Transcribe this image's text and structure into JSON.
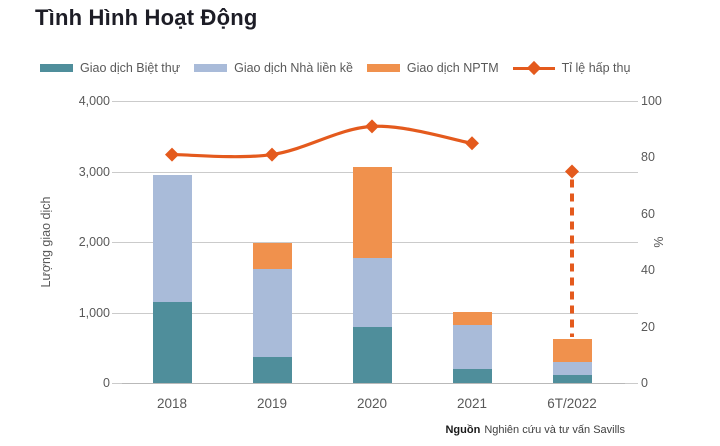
{
  "title": "Tình Hình Hoạt Động",
  "source": {
    "label": "Nguồn",
    "text": "Nghiên cứu và tư vấn Savills"
  },
  "chart_data": {
    "type": "bar",
    "subtype": "stacked-bars-with-right-axis-line",
    "title": "Tình Hình Hoạt Động",
    "categories": [
      "2018",
      "2019",
      "2020",
      "2021",
      "6T/2022"
    ],
    "series": [
      {
        "key": "biet-thu",
        "name": "Giao dịch Biệt thự",
        "type": "bar",
        "color": "#4F8E9B",
        "values": [
          1150,
          370,
          800,
          200,
          110
        ]
      },
      {
        "key": "nha-lien-ke",
        "name": "Giao dịch Nhà liền kề",
        "type": "bar",
        "color": "#A9BBD9",
        "values": [
          1800,
          1250,
          970,
          620,
          190
        ]
      },
      {
        "key": "nptm",
        "name": "Giao dịch NPTM",
        "type": "bar",
        "color": "#F0914D",
        "values": [
          0,
          360,
          1290,
          190,
          325
        ]
      },
      {
        "key": "ti-le-hap-thu",
        "name": "Tỉ lệ hấp thụ",
        "type": "line",
        "axis": "right",
        "color": "#E45A1D",
        "values": [
          81,
          81,
          91,
          85,
          75
        ],
        "last_point_detached_with_dashed_drop": true
      }
    ],
    "stacked_totals": [
      2950,
      1980,
      3060,
      1010,
      625
    ],
    "left_axis": {
      "label": "Lượng giao dịch",
      "min": 0,
      "max": 4000,
      "ticks": [
        "4,000",
        "3,000",
        "2,000",
        "1,000",
        "0"
      ]
    },
    "right_axis": {
      "label": "%",
      "min": 0,
      "max": 100,
      "ticks": [
        "100",
        "80",
        "60",
        "40",
        "20",
        "0"
      ]
    },
    "grid": "horizontal",
    "legend_position": "top",
    "colors": {
      "grid": "#cbcbcb",
      "baseline": "#b9b9b9",
      "text": "#595959",
      "title": "#1d1d26"
    }
  }
}
